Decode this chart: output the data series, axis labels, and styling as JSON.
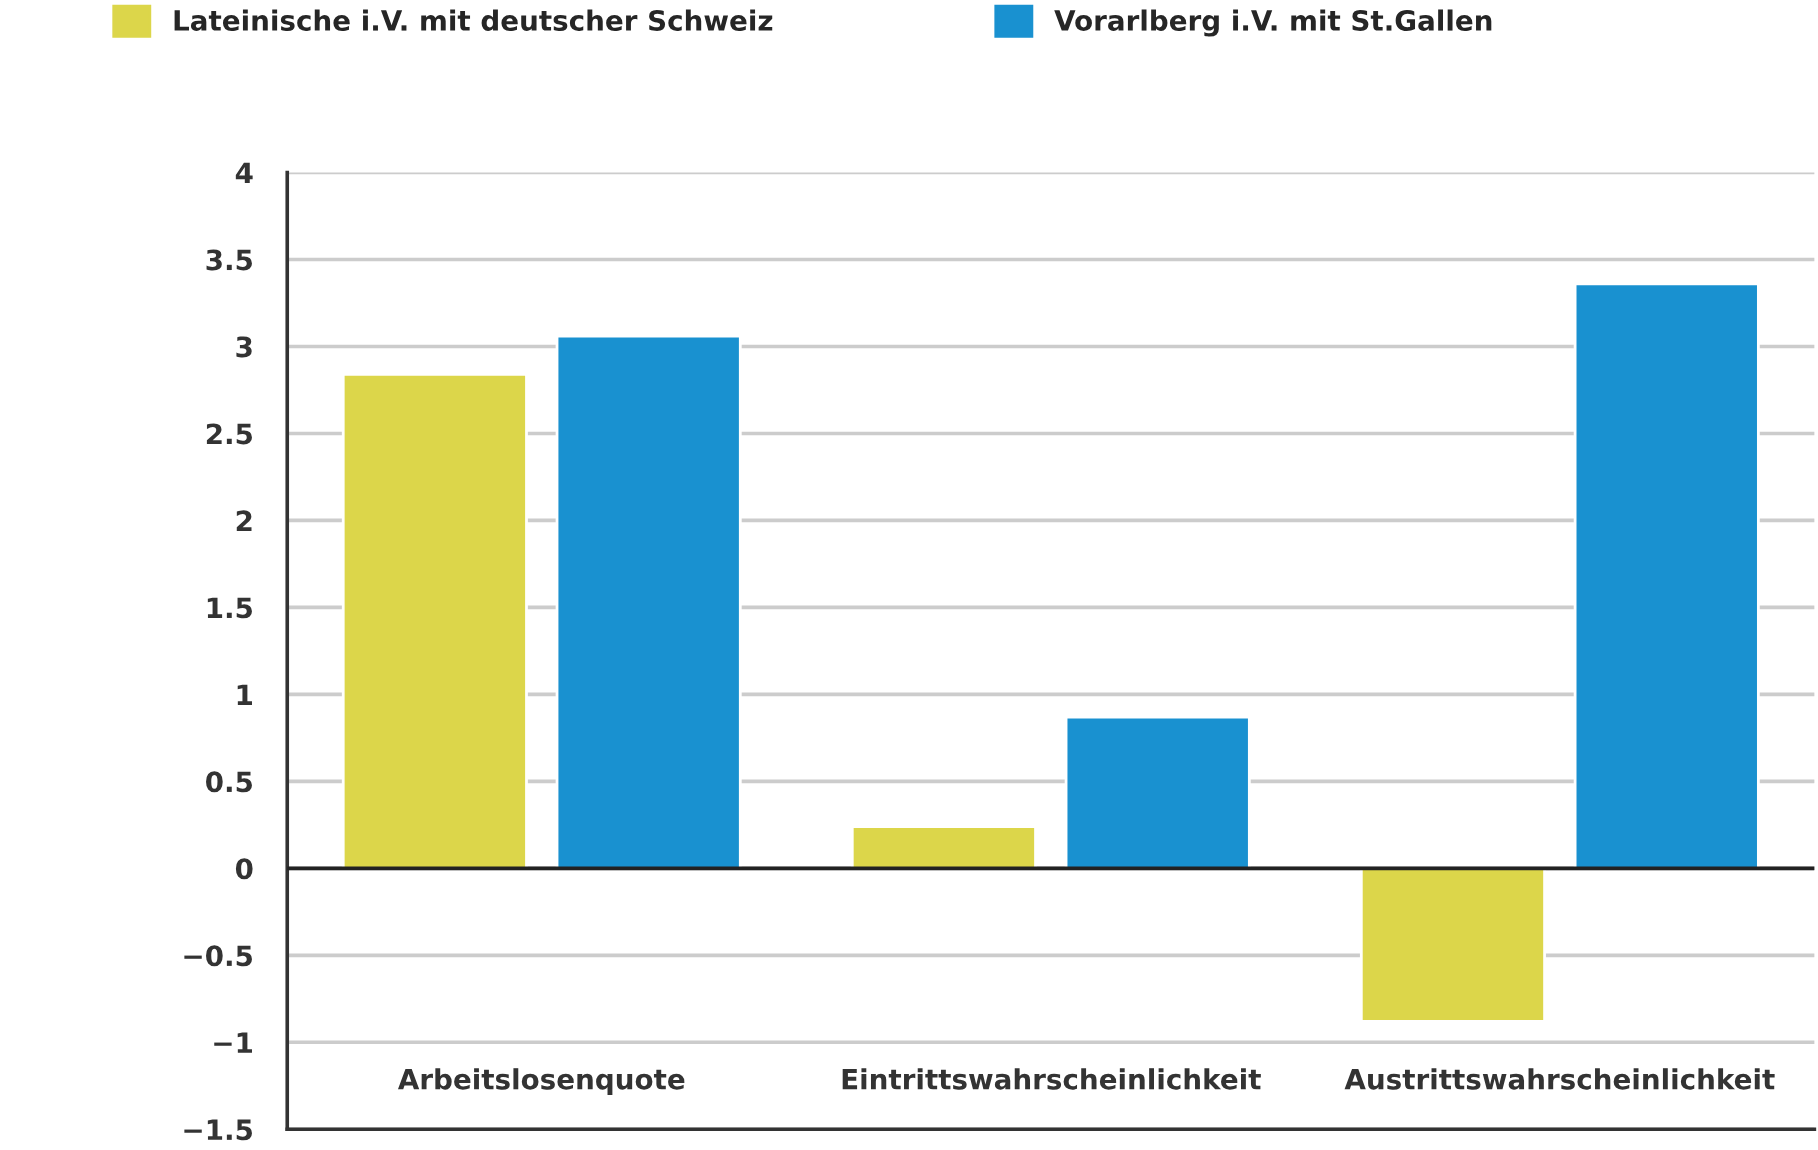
{
  "chart_data": {
    "type": "bar",
    "categories": [
      "Arbeitslosenquote",
      "Eintrittswahrscheinlichkeit",
      "Austrittswahrscheinlichkeit"
    ],
    "series": [
      {
        "name": "Lateinische i.V. mit deutscher Schweiz",
        "color": "#dcd64a",
        "values": [
          2.84,
          0.24,
          -0.88
        ]
      },
      {
        "name": "Vorarlberg i.V. mit St.Gallen",
        "color": "#1991d0",
        "values": [
          3.06,
          0.87,
          3.36
        ]
      }
    ],
    "ylim": [
      -1.5,
      4
    ],
    "yticks": [
      {
        "value": -1.5,
        "label": "−1.5"
      },
      {
        "value": -1,
        "label": "−1"
      },
      {
        "value": -0.5,
        "label": "−0.5"
      },
      0,
      0.5,
      1,
      1.5,
      2,
      2.5,
      3,
      3.5,
      4
    ],
    "ref_lines": [
      {
        "axis": "y",
        "value": 0,
        "color": "#222222"
      }
    ],
    "grid": "y",
    "legend": "top left"
  }
}
